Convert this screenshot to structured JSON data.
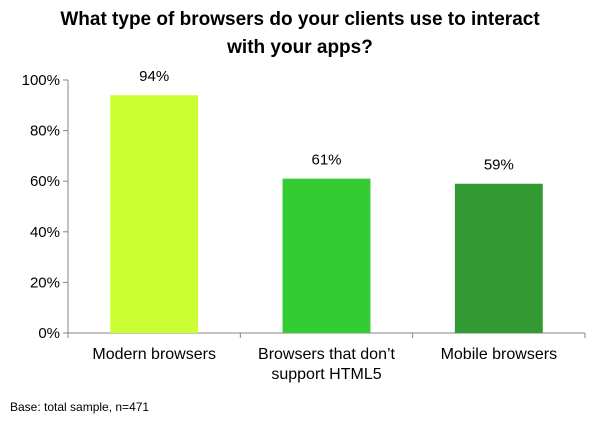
{
  "title_lines": [
    "What type of browsers do your clients use to interact",
    "with your apps?"
  ],
  "footnote": "Base: total sample, n=471",
  "chart_data": {
    "type": "bar",
    "categories": [
      [
        "Modern browsers"
      ],
      [
        "Browsers that don’t",
        "support HTML5"
      ],
      [
        "Mobile browsers"
      ]
    ],
    "values": [
      94,
      61,
      59
    ],
    "value_labels": [
      "94%",
      "61%",
      "59%"
    ],
    "bar_colors": [
      "#ccff33",
      "#33cc33",
      "#339933"
    ],
    "ylim": [
      0,
      100
    ],
    "yticks": [
      0,
      20,
      40,
      60,
      80,
      100
    ],
    "ytick_labels": [
      "0%",
      "20%",
      "40%",
      "60%",
      "80%",
      "100%"
    ],
    "xlabel": "",
    "ylabel": "",
    "grid": false,
    "legend": "none"
  }
}
